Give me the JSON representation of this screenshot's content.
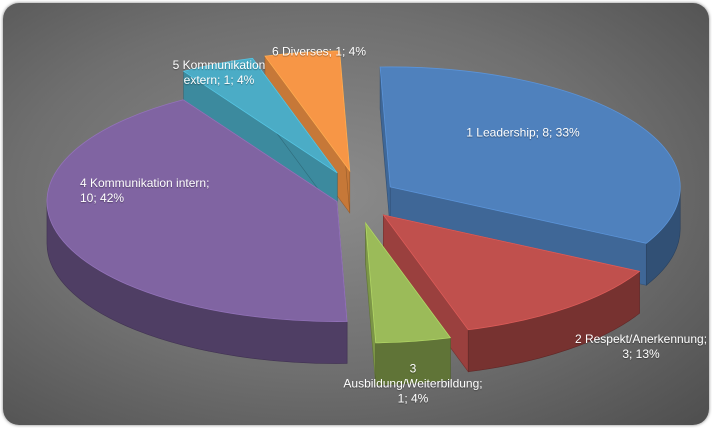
{
  "chart_data": {
    "type": "pie",
    "style": "3d-exploded",
    "slices": [
      {
        "label": "1 Leadership",
        "value": 8,
        "percent": "33%",
        "color": "#4F81BD",
        "label_lines": [
          "1 Leadership; 8; 33%"
        ]
      },
      {
        "label": "2 Respekt/Anerkennung",
        "value": 3,
        "percent": "13%",
        "color": "#C0504D",
        "label_lines": [
          "2 Respekt/Anerkennung;",
          "3; 13%"
        ]
      },
      {
        "label": "3 Ausbildung/Weiterbildung",
        "value": 1,
        "percent": "4%",
        "color": "#9BBB59",
        "label_lines": [
          "3",
          "Ausbildung/Weiterbildung;",
          "1; 4%"
        ]
      },
      {
        "label": "4 Kommunikation intern",
        "value": 10,
        "percent": "42%",
        "color": "#8064A2",
        "label_lines": [
          "4 Kommunikation intern;",
          "10; 42%"
        ]
      },
      {
        "label": "5 Kommunikation extern",
        "value": 1,
        "percent": "4%",
        "color": "#4BACC6",
        "label_lines": [
          "5 Kommunikation",
          "extern; 1; 4%"
        ]
      },
      {
        "label": "6 Diverses",
        "value": 1,
        "percent": "4%",
        "color": "#F79646",
        "label_lines": [
          "6 Diverses; 1; 4%"
        ]
      }
    ],
    "legend": "none",
    "background": "#7a7a7a"
  }
}
